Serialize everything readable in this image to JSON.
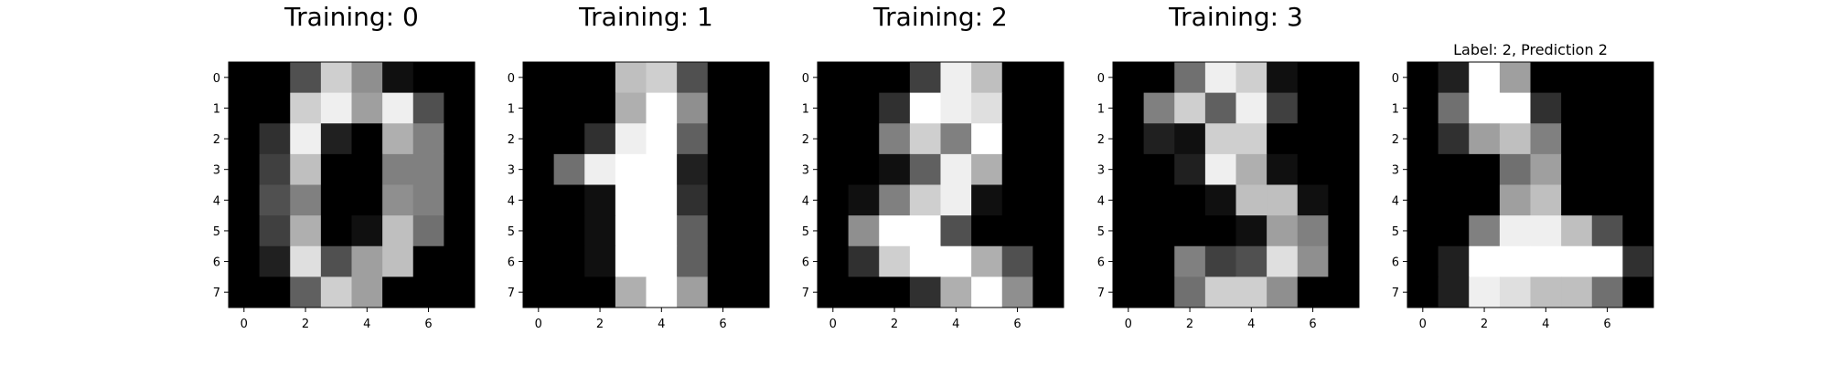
{
  "chart_data": [
    {
      "type": "heatmap",
      "title": "Training: 0",
      "x_ticks": [
        "0",
        "2",
        "4",
        "6"
      ],
      "y_ticks": [
        "0",
        "1",
        "2",
        "3",
        "4",
        "5",
        "6",
        "7"
      ],
      "colormap": "gray",
      "value_range": [
        0,
        16
      ],
      "grid": false,
      "values": [
        [
          0,
          0,
          5,
          13,
          9,
          1,
          0,
          0
        ],
        [
          0,
          0,
          13,
          15,
          10,
          15,
          5,
          0
        ],
        [
          0,
          3,
          15,
          2,
          0,
          11,
          8,
          0
        ],
        [
          0,
          4,
          12,
          0,
          0,
          8,
          8,
          0
        ],
        [
          0,
          5,
          8,
          0,
          0,
          9,
          8,
          0
        ],
        [
          0,
          4,
          11,
          0,
          1,
          12,
          7,
          0
        ],
        [
          0,
          2,
          14,
          5,
          10,
          12,
          0,
          0
        ],
        [
          0,
          0,
          6,
          13,
          10,
          0,
          0,
          0
        ]
      ]
    },
    {
      "type": "heatmap",
      "title": "Training: 1",
      "x_ticks": [
        "0",
        "2",
        "4",
        "6"
      ],
      "y_ticks": [
        "0",
        "1",
        "2",
        "3",
        "4",
        "5",
        "6",
        "7"
      ],
      "colormap": "gray",
      "value_range": [
        0,
        16
      ],
      "grid": false,
      "values": [
        [
          0,
          0,
          0,
          12,
          13,
          5,
          0,
          0
        ],
        [
          0,
          0,
          0,
          11,
          16,
          9,
          0,
          0
        ],
        [
          0,
          0,
          3,
          15,
          16,
          6,
          0,
          0
        ],
        [
          0,
          7,
          15,
          16,
          16,
          2,
          0,
          0
        ],
        [
          0,
          0,
          1,
          16,
          16,
          3,
          0,
          0
        ],
        [
          0,
          0,
          1,
          16,
          16,
          6,
          0,
          0
        ],
        [
          0,
          0,
          1,
          16,
          16,
          6,
          0,
          0
        ],
        [
          0,
          0,
          0,
          11,
          16,
          10,
          0,
          0
        ]
      ]
    },
    {
      "type": "heatmap",
      "title": "Training: 2",
      "x_ticks": [
        "0",
        "2",
        "4",
        "6"
      ],
      "y_ticks": [
        "0",
        "1",
        "2",
        "3",
        "4",
        "5",
        "6",
        "7"
      ],
      "colormap": "gray",
      "value_range": [
        0,
        16
      ],
      "grid": false,
      "values": [
        [
          0,
          0,
          0,
          4,
          15,
          12,
          0,
          0
        ],
        [
          0,
          0,
          3,
          16,
          15,
          14,
          0,
          0
        ],
        [
          0,
          0,
          8,
          13,
          8,
          16,
          0,
          0
        ],
        [
          0,
          0,
          1,
          6,
          15,
          11,
          0,
          0
        ],
        [
          0,
          1,
          8,
          13,
          15,
          1,
          0,
          0
        ],
        [
          0,
          9,
          16,
          16,
          5,
          0,
          0,
          0
        ],
        [
          0,
          3,
          13,
          16,
          16,
          11,
          5,
          0
        ],
        [
          0,
          0,
          0,
          3,
          11,
          16,
          9,
          0
        ]
      ]
    },
    {
      "type": "heatmap",
      "title": "Training: 3",
      "x_ticks": [
        "0",
        "2",
        "4",
        "6"
      ],
      "y_ticks": [
        "0",
        "1",
        "2",
        "3",
        "4",
        "5",
        "6",
        "7"
      ],
      "colormap": "gray",
      "value_range": [
        0,
        16
      ],
      "grid": false,
      "values": [
        [
          0,
          0,
          7,
          15,
          13,
          1,
          0,
          0
        ],
        [
          0,
          8,
          13,
          6,
          15,
          4,
          0,
          0
        ],
        [
          0,
          2,
          1,
          13,
          13,
          0,
          0,
          0
        ],
        [
          0,
          0,
          2,
          15,
          11,
          1,
          0,
          0
        ],
        [
          0,
          0,
          0,
          1,
          12,
          12,
          1,
          0
        ],
        [
          0,
          0,
          0,
          0,
          1,
          10,
          8,
          0
        ],
        [
          0,
          0,
          8,
          4,
          5,
          14,
          9,
          0
        ],
        [
          0,
          0,
          7,
          13,
          13,
          9,
          0,
          0
        ]
      ]
    },
    {
      "type": "heatmap",
      "title": "Label: 2, Prediction 2",
      "x_ticks": [
        "0",
        "2",
        "4",
        "6"
      ],
      "y_ticks": [
        "0",
        "1",
        "2",
        "3",
        "4",
        "5",
        "6",
        "7"
      ],
      "colormap": "gray",
      "value_range": [
        0,
        16
      ],
      "grid": false,
      "values": [
        [
          0,
          2,
          16,
          10,
          0,
          0,
          0,
          0
        ],
        [
          0,
          7,
          16,
          16,
          3,
          0,
          0,
          0
        ],
        [
          0,
          3,
          10,
          12,
          8,
          0,
          0,
          0
        ],
        [
          0,
          0,
          0,
          7,
          10,
          0,
          0,
          0
        ],
        [
          0,
          0,
          0,
          10,
          12,
          0,
          0,
          0
        ],
        [
          0,
          0,
          8,
          15,
          15,
          12,
          5,
          0
        ],
        [
          0,
          2,
          16,
          16,
          16,
          16,
          16,
          3
        ],
        [
          0,
          2,
          15,
          14,
          12,
          12,
          7,
          0
        ]
      ]
    }
  ]
}
